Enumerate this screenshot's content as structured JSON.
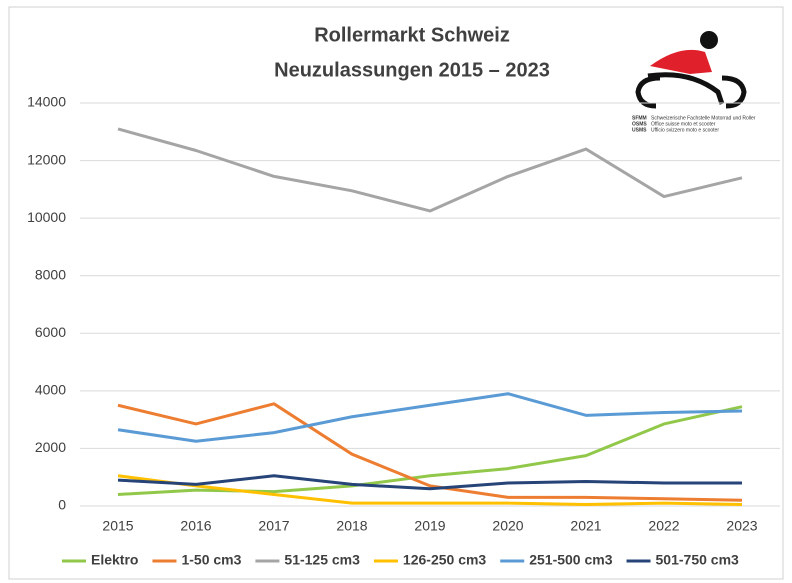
{
  "chart_data": {
    "type": "line",
    "title": "Rollermarkt Schweiz",
    "subtitle": "Neuzulassungen 2015 – 2023",
    "categories": [
      "2015",
      "2016",
      "2017",
      "2018",
      "2019",
      "2020",
      "2021",
      "2022",
      "2023"
    ],
    "series": [
      {
        "name": "Elektro",
        "color": "#92c84a",
        "values": [
          400,
          550,
          500,
          700,
          1050,
          1300,
          1750,
          2850,
          3450
        ]
      },
      {
        "name": "1-50 cm3",
        "color": "#ed7d31",
        "values": [
          3500,
          2850,
          3550,
          1800,
          700,
          300,
          300,
          250,
          200
        ]
      },
      {
        "name": "51-125 cm3",
        "color": "#a5a5a5",
        "values": [
          13100,
          12350,
          11450,
          10950,
          10250,
          11450,
          12400,
          10750,
          11400
        ]
      },
      {
        "name": "126-250 cm3",
        "color": "#ffc000",
        "values": [
          1050,
          700,
          400,
          100,
          100,
          100,
          50,
          100,
          50
        ]
      },
      {
        "name": "251-500 cm3",
        "color": "#5b9bd5",
        "values": [
          2650,
          2250,
          2550,
          3100,
          3500,
          3900,
          3150,
          3250,
          3300
        ]
      },
      {
        "name": "501-750 cm3",
        "color": "#264478",
        "values": [
          900,
          750,
          1050,
          750,
          600,
          800,
          850,
          800,
          800
        ]
      }
    ],
    "ylim": [
      0,
      14000
    ],
    "yticks": [
      0,
      2000,
      4000,
      6000,
      8000,
      10000,
      12000,
      14000
    ],
    "grid": true,
    "legend": "bottom"
  },
  "logo": {
    "lines": [
      {
        "abbr": "SFMM",
        "text": "Schweizerische Fachstelle Motorrad und Roller"
      },
      {
        "abbr": "OSMS",
        "text": "Office suisse moto et scooter"
      },
      {
        "abbr": "USMS",
        "text": "Ufficio svizzero moto e scooter"
      }
    ]
  }
}
